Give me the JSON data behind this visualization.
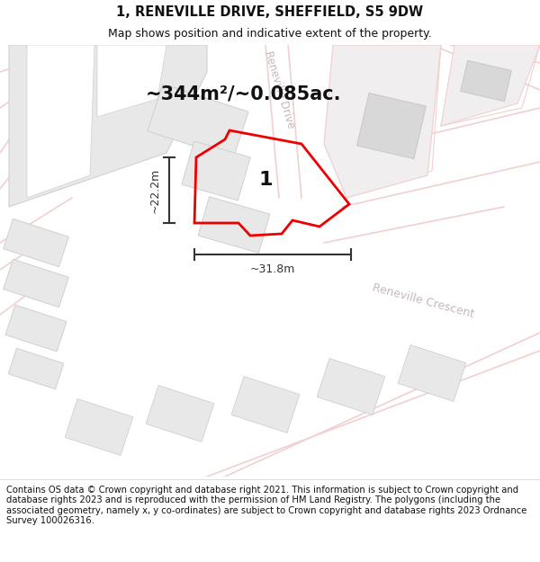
{
  "title": "1, RENEVILLE DRIVE, SHEFFIELD, S5 9DW",
  "subtitle": "Map shows position and indicative extent of the property.",
  "area_text": "~344m²/~0.085ac.",
  "dim_width": "~31.8m",
  "dim_height": "~22.2m",
  "plot_label": "1",
  "street1": "Reneville Drive",
  "street2": "Reneville Crescent",
  "copyright_text": "Contains OS data © Crown copyright and database right 2021. This information is subject to Crown copyright and database rights 2023 and is reproduced with the permission of HM Land Registry. The polygons (including the associated geometry, namely x, y co-ordinates) are subject to Crown copyright and database rights 2023 Ordnance Survey 100026316.",
  "map_bg": "#f5f5f5",
  "road_color": "#f0d0d0",
  "road_fill": "#f8f0f0",
  "building_outer_color": "#e8e8e8",
  "building_outer_edge": "#d0d0d0",
  "building_inner_color": "#d8d8d8",
  "building_inner_edge": "#c8c8c8",
  "red_plot": "#ee0000",
  "dim_color": "#333333",
  "street_color": "#c8b8b8",
  "title_fontsize": 10.5,
  "subtitle_fontsize": 9,
  "area_fontsize": 15,
  "label_fontsize": 16,
  "copyright_fontsize": 7.2
}
